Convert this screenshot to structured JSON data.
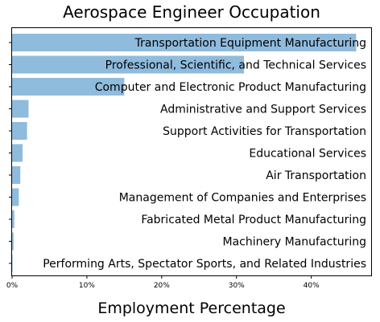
{
  "chart_data": {
    "type": "bar",
    "orientation": "horizontal",
    "title": "Aerospace Engineer Occupation",
    "xlabel": "Employment Percentage",
    "ylabel": "",
    "xlim": [
      0,
      48
    ],
    "xticks": [
      0,
      10,
      20,
      30,
      40
    ],
    "xtick_labels": [
      "0%",
      "10%",
      "20%",
      "30%",
      "40%"
    ],
    "categories": [
      "Transportation Equipment Manufacturing",
      "Professional, Scientific, and Technical Services",
      "Computer and Electronic Product Manufacturing",
      "Administrative and Support Services",
      "Support Activities for Transportation",
      "Educational Services",
      "Air Transportation",
      "Management of Companies and Enterprises",
      "Fabricated Metal Product Manufacturing",
      "Machinery Manufacturing",
      "Performing Arts, Spectator Sports, and Related Industries"
    ],
    "values": [
      46.0,
      31.0,
      15.0,
      2.2,
      2.0,
      1.4,
      1.1,
      0.9,
      0.3,
      0.2,
      0.05
    ],
    "bar_color": "#8fbbdd",
    "grid": false,
    "legend": "none"
  }
}
